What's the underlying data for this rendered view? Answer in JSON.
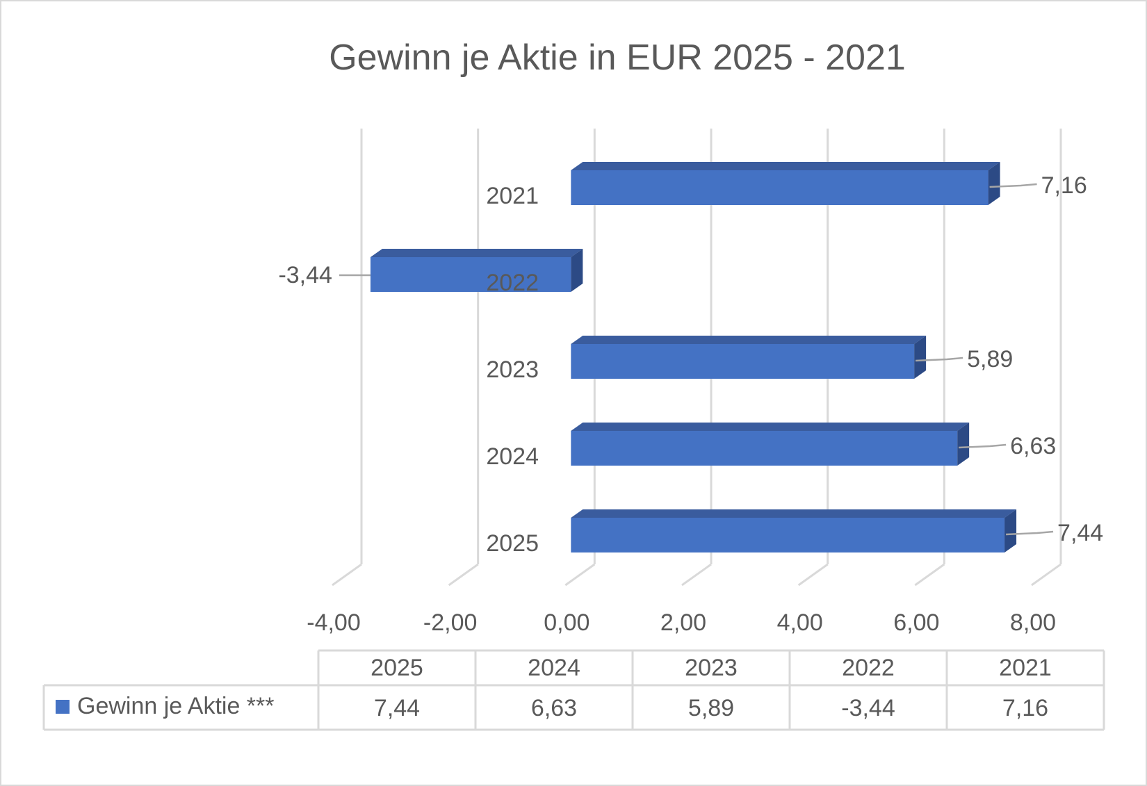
{
  "chart_data": {
    "type": "bar",
    "orientation": "horizontal",
    "title": "Gewinn je Aktie in EUR 2025 - 2021",
    "categories": [
      "2025",
      "2024",
      "2023",
      "2022",
      "2021"
    ],
    "category_labels_drawn": [
      "2025",
      "2024",
      "2023",
      "2022",
      "2021"
    ],
    "series": [
      {
        "name": "Gewinn je Aktie ***",
        "values": [
          7.44,
          6.63,
          5.89,
          -3.44,
          7.16
        ],
        "value_labels": [
          "7,44",
          "6,63",
          "5,89",
          "-3,44",
          "7,16"
        ],
        "color": "#4472c4"
      }
    ],
    "xlim": [
      -4,
      8
    ],
    "xticks": [
      -4,
      -2,
      0,
      2,
      4,
      6,
      8
    ],
    "xtick_labels": [
      "-4,00",
      "-2,00",
      "0,00",
      "2,00",
      "4,00",
      "6,00",
      "8,00"
    ],
    "grid": true,
    "style_3d": true,
    "data_table": {
      "header": [
        "2025",
        "2024",
        "2023",
        "2022",
        "2021"
      ],
      "rows": [
        {
          "label": "Gewinn je Aktie ***",
          "values": [
            "7,44",
            "6,63",
            "5,89",
            "-3,44",
            "7,16"
          ]
        }
      ]
    }
  },
  "colors": {
    "bar_front": "#4472c4",
    "bar_top": "#3a5c9e",
    "bar_side": "#2c4a85",
    "grid": "#d9d9d9",
    "text": "#595959"
  }
}
